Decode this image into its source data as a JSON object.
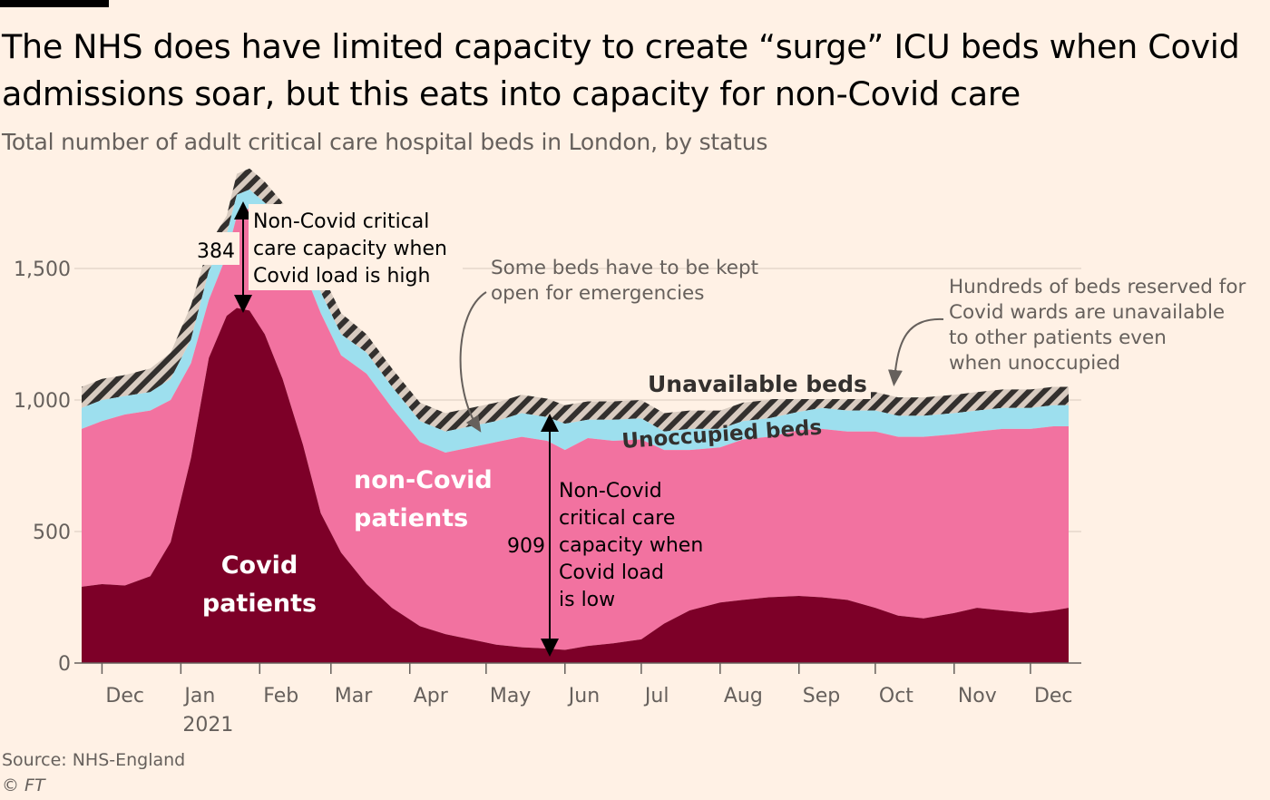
{
  "title": "The NHS does have limited capacity to create “surge” ICU beds when Covid admissions soar, but this eats into capacity for non-Covid care",
  "subtitle": "Total number of adult critical care hospital beds in London, by status",
  "source": "Source: NHS-England",
  "copyright": "© FT",
  "colors": {
    "covid": "#7d0028",
    "non_covid": "#f272a0",
    "unoccupied": "#9ddfee",
    "unavailable_stripe": "#33302e",
    "unavailable_bg": "#d8cbc0",
    "background": "#fff1e5",
    "grid": "#e5d8cc"
  },
  "labels": {
    "covid_patients": [
      "Covid",
      "patients"
    ],
    "non_covid_patients": [
      "non-Covid",
      "patients"
    ],
    "unavailable_beds": "Unavailable beds",
    "unoccupied_beds": "Unoccupied beds"
  },
  "annotations": {
    "peak_value": "384",
    "peak_text": [
      "Non-Covid critical",
      "care capacity when",
      "Covid load is high"
    ],
    "low_value": "909",
    "low_text": [
      "Non-Covid",
      "critical care",
      "capacity when",
      "Covid load",
      "is low"
    ],
    "emergency_text": [
      "Some beds have to be kept",
      "open for emergencies"
    ],
    "reserved_text": [
      "Hundreds of beds reserved for",
      "Covid wards are unavailable",
      "to other patients even",
      "when unoccupied"
    ]
  },
  "chart_data": {
    "type": "area",
    "stacked": true,
    "x_ticks": [
      "Dec",
      "Jan",
      "Feb",
      "Mar",
      "Apr",
      "May",
      "Jun",
      "Jul",
      "Aug",
      "Sep",
      "Oct",
      "Nov",
      "Dec"
    ],
    "x_year_label": "2021",
    "y_ticks": [
      "0",
      "500",
      "1,000",
      "1,500"
    ],
    "ylim": [
      0,
      1800
    ],
    "grid": "horizontal",
    "x": [
      "2020-11-23",
      "2020-12-01",
      "2020-12-10",
      "2020-12-20",
      "2020-12-28",
      "2021-01-05",
      "2021-01-12",
      "2021-01-19",
      "2021-01-23",
      "2021-01-28",
      "2021-02-03",
      "2021-02-10",
      "2021-02-18",
      "2021-02-25",
      "2021-03-05",
      "2021-03-15",
      "2021-03-25",
      "2021-04-05",
      "2021-04-15",
      "2021-04-25",
      "2021-05-05",
      "2021-05-15",
      "2021-05-25",
      "2021-06-01",
      "2021-06-10",
      "2021-06-20",
      "2021-07-01",
      "2021-07-10",
      "2021-07-20",
      "2021-08-01",
      "2021-08-10",
      "2021-08-20",
      "2021-09-01",
      "2021-09-10",
      "2021-09-20",
      "2021-10-01",
      "2021-10-10",
      "2021-10-20",
      "2021-11-01",
      "2021-11-10",
      "2021-11-20",
      "2021-12-01",
      "2021-12-10",
      "2021-12-16"
    ],
    "series": [
      {
        "name": "Covid patients",
        "values": [
          290,
          300,
          295,
          330,
          460,
          780,
          1160,
          1320,
          1350,
          1340,
          1250,
          1080,
          830,
          570,
          420,
          300,
          210,
          140,
          110,
          90,
          70,
          60,
          55,
          50,
          65,
          75,
          90,
          150,
          200,
          230,
          240,
          250,
          255,
          250,
          240,
          210,
          180,
          170,
          190,
          210,
          200,
          190,
          200,
          210
        ]
      },
      {
        "name": "non-Covid patients",
        "values": [
          600,
          620,
          650,
          630,
          540,
          360,
          220,
          230,
          350,
          390,
          440,
          540,
          670,
          760,
          750,
          800,
          760,
          700,
          690,
          730,
          770,
          800,
          790,
          760,
          790,
          770,
          760,
          660,
          610,
          590,
          610,
          610,
          630,
          640,
          640,
          670,
          680,
          690,
          680,
          670,
          690,
          700,
          700,
          690
        ]
      },
      {
        "name": "Unoccupied beds",
        "values": [
          80,
          80,
          70,
          70,
          80,
          90,
          110,
          80,
          80,
          70,
          60,
          60,
          70,
          80,
          80,
          80,
          80,
          80,
          80,
          80,
          80,
          90,
          90,
          100,
          70,
          80,
          80,
          70,
          80,
          70,
          70,
          70,
          70,
          80,
          80,
          80,
          80,
          80,
          80,
          80,
          80,
          80,
          80,
          80
        ]
      },
      {
        "name": "Unavailable beds",
        "values": [
          80,
          80,
          80,
          90,
          100,
          130,
          100,
          70,
          80,
          80,
          80,
          70,
          90,
          80,
          80,
          70,
          70,
          70,
          70,
          70,
          70,
          70,
          70,
          70,
          70,
          70,
          70,
          70,
          70,
          70,
          70,
          70,
          70,
          70,
          70,
          70,
          70,
          70,
          70,
          70,
          70,
          70,
          70,
          70
        ]
      }
    ]
  }
}
